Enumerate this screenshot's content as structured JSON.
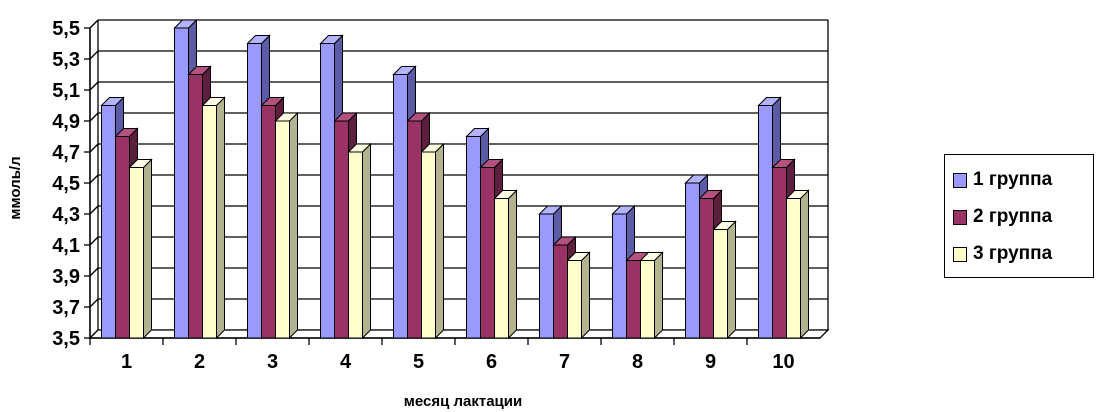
{
  "chart_data": {
    "type": "bar",
    "categories": [
      "1",
      "2",
      "3",
      "4",
      "5",
      "6",
      "7",
      "8",
      "9",
      "10"
    ],
    "series": [
      {
        "name": "1 группа",
        "values": [
          5.0,
          5.5,
          5.4,
          5.4,
          5.2,
          4.8,
          4.3,
          4.3,
          4.5,
          5.0
        ]
      },
      {
        "name": "2 группа",
        "values": [
          4.8,
          5.2,
          5.0,
          4.9,
          4.9,
          4.6,
          4.1,
          4.0,
          4.4,
          4.6
        ]
      },
      {
        "name": "3 группа",
        "values": [
          4.6,
          5.0,
          4.9,
          4.7,
          4.7,
          4.4,
          4.0,
          4.0,
          4.2,
          4.4
        ]
      }
    ],
    "yticks": [
      "3,5",
      "3,7",
      "3,9",
      "4,1",
      "4,3",
      "4,5",
      "4,7",
      "4,9",
      "5,1",
      "5,3",
      "5,5"
    ],
    "ylim": [
      3.5,
      5.5
    ],
    "xlabel": "месяц лактации",
    "ylabel": "ммоль/л",
    "legend_position": "right",
    "grid": true,
    "colors": {
      "series": [
        "#9999FF",
        "#993366",
        "#FFFFCC"
      ],
      "series_top": [
        "#B3B3FF",
        "#B3527F",
        "#FFFFE6"
      ],
      "series_side": [
        "#5C5CA6",
        "#5C1F3D",
        "#B3B38F"
      ],
      "grid": "#000000"
    }
  },
  "legend": {
    "items": [
      {
        "label": "1 группа"
      },
      {
        "label": "2 группа"
      },
      {
        "label": "3 группа"
      }
    ]
  }
}
